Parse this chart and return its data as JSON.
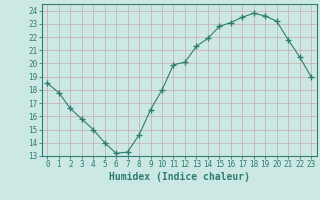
{
  "x": [
    0,
    1,
    2,
    3,
    4,
    5,
    6,
    7,
    8,
    9,
    10,
    11,
    12,
    13,
    14,
    15,
    16,
    17,
    18,
    19,
    20,
    21,
    22,
    23
  ],
  "y": [
    18.5,
    17.8,
    16.6,
    15.8,
    15.0,
    14.0,
    13.2,
    13.3,
    14.6,
    16.5,
    18.0,
    19.9,
    20.1,
    21.3,
    21.9,
    22.8,
    23.1,
    23.5,
    23.8,
    23.6,
    23.2,
    21.8,
    20.5,
    19.0
  ],
  "line_color": "#2e7d6e",
  "marker": "+",
  "marker_size": 4,
  "bg_color": "#cce8e4",
  "grid_color": "#b8d8d4",
  "xlabel": "Humidex (Indice chaleur)",
  "xlim": [
    -0.5,
    23.5
  ],
  "ylim": [
    13,
    24.5
  ],
  "yticks": [
    13,
    14,
    15,
    16,
    17,
    18,
    19,
    20,
    21,
    22,
    23,
    24
  ],
  "xticks": [
    0,
    1,
    2,
    3,
    4,
    5,
    6,
    7,
    8,
    9,
    10,
    11,
    12,
    13,
    14,
    15,
    16,
    17,
    18,
    19,
    20,
    21,
    22,
    23
  ],
  "tick_label_fontsize": 5.5,
  "xlabel_fontsize": 7,
  "tick_color": "#2e7d6e",
  "axis_color": "#2e7d6e",
  "spine_color": "#2e7d6e"
}
